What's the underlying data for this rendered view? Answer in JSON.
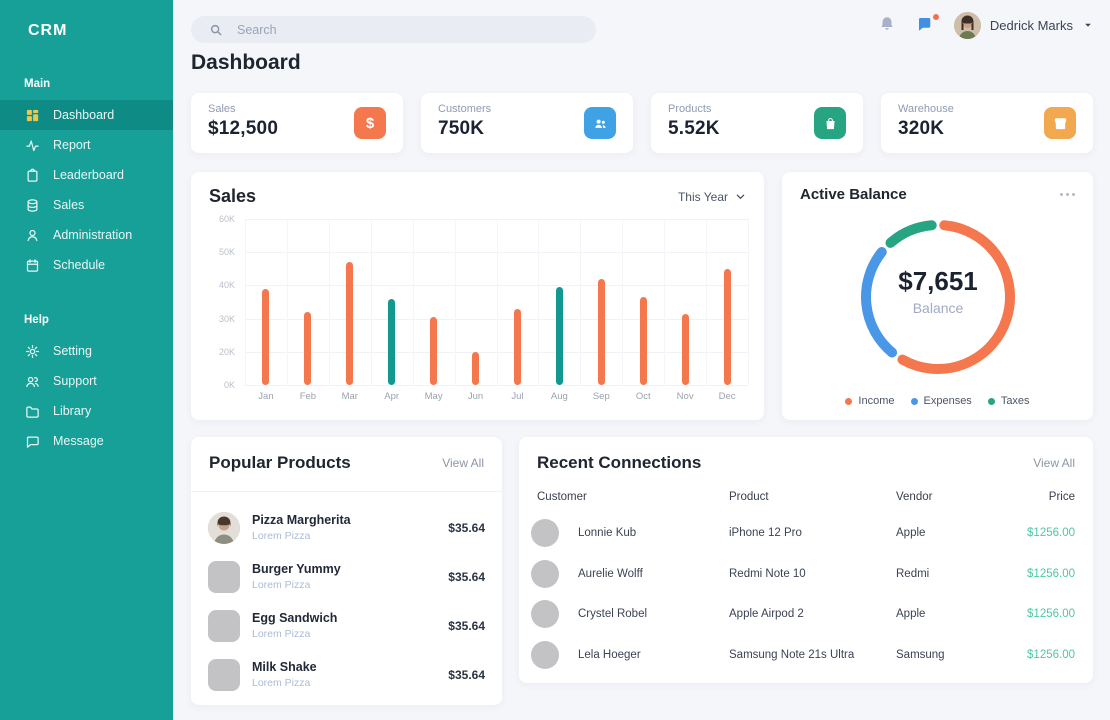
{
  "colors": {
    "sidebar": "#16a098",
    "sidebar_active": "#0d8b84",
    "sidebar_active_icon": "#e9c94d",
    "background": "#f5f6fa",
    "accent_orange": "#f4774e",
    "accent_teal": "#12998f",
    "accent_blue": "#4a97e8",
    "accent_green": "#27a583",
    "price_green": "#4ec7a5"
  },
  "sidebar": {
    "logo": "CRM",
    "sections": [
      {
        "label": "Main",
        "items": [
          {
            "label": "Dashboard",
            "icon": "dashboard",
            "active": true
          },
          {
            "label": "Report",
            "icon": "report",
            "active": false
          },
          {
            "label": "Leaderboard",
            "icon": "leaderboard",
            "active": false
          },
          {
            "label": "Sales",
            "icon": "sales",
            "active": false
          },
          {
            "label": "Administration",
            "icon": "administration",
            "active": false
          },
          {
            "label": "Schedule",
            "icon": "schedule",
            "active": false
          }
        ]
      },
      {
        "label": "Help",
        "items": [
          {
            "label": "Setting",
            "icon": "setting",
            "active": false
          },
          {
            "label": "Support",
            "icon": "support",
            "active": false
          },
          {
            "label": "Library",
            "icon": "library",
            "active": false
          },
          {
            "label": "Message",
            "icon": "message",
            "active": false
          }
        ]
      }
    ]
  },
  "topbar": {
    "search_placeholder": "Search",
    "user_name": "Dedrick Marks"
  },
  "page_title": "Dashboard",
  "stats": [
    {
      "label": "Sales",
      "value": "$12,500",
      "icon": "dollar",
      "icon_bg": "#f4774e"
    },
    {
      "label": "Customers",
      "value": "750K",
      "icon": "customers",
      "icon_bg": "#3ea2e5"
    },
    {
      "label": "Products",
      "value": "5.52K",
      "icon": "products",
      "icon_bg": "#27a583"
    },
    {
      "label": "Warehouse",
      "value": "320K",
      "icon": "warehouse",
      "icon_bg": "#f2a84e"
    }
  ],
  "panels": {
    "sales": {
      "title": "Sales",
      "range_label": "This Year"
    },
    "balance": {
      "title": "Active Balance",
      "center_value": "$7,651",
      "center_label": "Balance"
    },
    "popular": {
      "title": "Popular Products",
      "view_all": "View All"
    },
    "connections": {
      "title": "Recent Connections",
      "view_all": "View All"
    }
  },
  "popular_products": [
    {
      "name": "Pizza Margherita",
      "subtitle": "Lorem Pizza",
      "price": "$35.64",
      "avatar": "photo"
    },
    {
      "name": "Burger Yummy",
      "subtitle": "Lorem Pizza",
      "price": "$35.64",
      "avatar": "placeholder"
    },
    {
      "name": "Egg Sandwich",
      "subtitle": "Lorem Pizza",
      "price": "$35.64",
      "avatar": "placeholder"
    },
    {
      "name": "Milk Shake",
      "subtitle": "Lorem Pizza",
      "price": "$35.64",
      "avatar": "placeholder"
    }
  ],
  "recent_connections": {
    "columns": [
      "Customer",
      "Product",
      "Vendor",
      "Price"
    ],
    "rows": [
      {
        "customer": "Lonnie Kub",
        "product": "iPhone 12 Pro",
        "vendor": "Apple",
        "price": "$1256.00"
      },
      {
        "customer": "Aurelie Wolff",
        "product": "Redmi Note 10",
        "vendor": "Redmi",
        "price": "$1256.00"
      },
      {
        "customer": "Crystel Robel",
        "product": "Apple Airpod 2",
        "vendor": "Apple",
        "price": "$1256.00"
      },
      {
        "customer": "Lela Hoeger",
        "product": "Samsung Note 21s Ultra",
        "vendor": "Samsung",
        "price": "$1256.00"
      }
    ]
  },
  "chart_data": [
    {
      "id": "sales-by-month",
      "type": "bar",
      "title": "Sales",
      "range": "This Year",
      "categories": [
        "Jan",
        "Feb",
        "Mar",
        "Apr",
        "May",
        "Jun",
        "Jul",
        "Aug",
        "Sep",
        "Oct",
        "Nov",
        "Dec"
      ],
      "values": [
        39,
        32,
        47,
        36,
        30.5,
        20,
        33,
        39.5,
        42,
        36.5,
        31.5,
        45
      ],
      "unit": "K",
      "ylabels": [
        "60K",
        "50K",
        "40K",
        "30K",
        "20K",
        "0K"
      ],
      "ytick_values": [
        60,
        50,
        40,
        30,
        20,
        0
      ],
      "ylim": [
        0,
        60
      ],
      "grid": true,
      "default_color": "#f4774e",
      "highlight_color": "#12998f",
      "highlight_indices": [
        3,
        7
      ]
    },
    {
      "id": "active-balance",
      "type": "donut",
      "title": "Active Balance",
      "center_value": "$7,651",
      "center_label": "Balance",
      "legend_position": "bottom",
      "segments": [
        {
          "label": "Income",
          "value": 62,
          "color": "#f4774e"
        },
        {
          "label": "Expenses",
          "value": 27,
          "color": "#4a97e8"
        },
        {
          "label": "Taxes",
          "value": 11,
          "color": "#27a583"
        }
      ]
    }
  ]
}
